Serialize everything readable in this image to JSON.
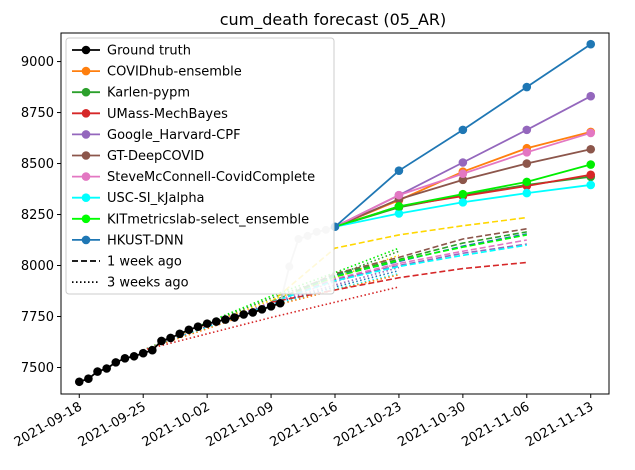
{
  "chart_data": {
    "type": "line",
    "title": "cum_death forecast (05_AR)",
    "xlabel": "",
    "ylabel": "",
    "x_range": [
      "2021-09-16",
      "2021-11-15"
    ],
    "y_range": [
      7370,
      9140
    ],
    "x_ticks": [
      "2021-09-18",
      "2021-09-25",
      "2021-10-02",
      "2021-10-09",
      "2021-10-16",
      "2021-10-23",
      "2021-10-30",
      "2021-11-06",
      "2021-11-13"
    ],
    "y_ticks": [
      7500,
      7750,
      8000,
      8250,
      8500,
      8750,
      9000
    ],
    "grid": false,
    "legend_position": "top-left",
    "ground_truth": {
      "name": "Ground truth",
      "color": "#000000",
      "x": [
        "2021-09-18",
        "2021-09-19",
        "2021-09-20",
        "2021-09-21",
        "2021-09-22",
        "2021-09-23",
        "2021-09-24",
        "2021-09-25",
        "2021-09-26",
        "2021-09-27",
        "2021-09-28",
        "2021-09-29",
        "2021-09-30",
        "2021-10-01",
        "2021-10-02",
        "2021-10-03",
        "2021-10-04",
        "2021-10-05",
        "2021-10-06",
        "2021-10-07",
        "2021-10-08",
        "2021-10-09",
        "2021-10-10"
      ],
      "y": [
        7430,
        7445,
        7480,
        7495,
        7525,
        7545,
        7555,
        7570,
        7585,
        7630,
        7645,
        7665,
        7685,
        7700,
        7715,
        7725,
        7735,
        7745,
        7760,
        7770,
        7785,
        7800,
        7815
      ]
    },
    "ground_truth_later": {
      "color": "#c8c8c8",
      "x": [
        "2021-10-10",
        "2021-10-11",
        "2021-10-12",
        "2021-10-13",
        "2021-10-14",
        "2021-10-15",
        "2021-10-16"
      ],
      "y": [
        7815,
        7995,
        8130,
        8145,
        8165,
        8175,
        8190
      ]
    },
    "forecast_x": [
      "2021-10-16",
      "2021-10-23",
      "2021-10-30",
      "2021-11-06",
      "2021-11-13"
    ],
    "series": [
      {
        "name": "COVIDhub-ensemble",
        "color": "#ff7f0e",
        "values": [
          8190,
          8320,
          8460,
          8575,
          8655
        ]
      },
      {
        "name": "Karlen-pypm",
        "color": "#2ca02c",
        "values": [
          8190,
          8285,
          8345,
          8395,
          8435
        ]
      },
      {
        "name": "UMass-MechBayes",
        "color": "#d62728",
        "values": [
          8190,
          8290,
          8340,
          8390,
          8445
        ]
      },
      {
        "name": "Google_Harvard-CPF",
        "color": "#9467bd",
        "values": [
          8190,
          8345,
          8505,
          8665,
          8830
        ]
      },
      {
        "name": "GT-DeepCOVID",
        "color": "#8c564b",
        "values": [
          8190,
          8325,
          8420,
          8500,
          8570
        ]
      },
      {
        "name": "SteveMcConnell-CovidComplete",
        "color": "#e377c2",
        "values": [
          8190,
          8345,
          8450,
          8555,
          8650
        ]
      },
      {
        "name": "USC-SI_kJalpha",
        "color": "#00ffff",
        "values": [
          8190,
          8255,
          8310,
          8355,
          8395
        ]
      },
      {
        "name": "KITmetricslab-select_ensemble",
        "color": "#00ee00",
        "values": [
          8190,
          8290,
          8350,
          8410,
          8495
        ]
      },
      {
        "name": "HKUST-DNN",
        "color": "#1f77b4",
        "values": [
          8190,
          8465,
          8665,
          8875,
          9085
        ]
      }
    ],
    "one_week_ago": {
      "label": "1 week ago",
      "x": [
        "2021-10-09",
        "2021-10-16",
        "2021-10-23",
        "2021-10-30",
        "2021-11-06"
      ],
      "series": [
        {
          "color": "#ffd700",
          "values": [
            7820,
            8085,
            8150,
            8195,
            8235
          ]
        },
        {
          "color": "#8c564b",
          "values": [
            7820,
            7960,
            8040,
            8130,
            8180
          ]
        },
        {
          "color": "#2ca02c",
          "values": [
            7820,
            7955,
            8030,
            8110,
            8165
          ]
        },
        {
          "color": "#1f77b4",
          "values": [
            7820,
            7950,
            8020,
            8095,
            8155
          ]
        },
        {
          "color": "#00ff00",
          "values": [
            7820,
            7945,
            8025,
            8090,
            8150
          ]
        },
        {
          "color": "#e377c2",
          "values": [
            7820,
            7935,
            8010,
            8070,
            8125
          ]
        },
        {
          "color": "#9467bd",
          "values": [
            7820,
            7930,
            8000,
            8060,
            8105
          ]
        },
        {
          "color": "#00ffff",
          "values": [
            7820,
            7925,
            7995,
            8050,
            8100
          ]
        },
        {
          "color": "#d62728",
          "values": [
            7820,
            7880,
            7940,
            7985,
            8015
          ]
        }
      ]
    },
    "three_weeks_ago": {
      "label": "3 weeks ago",
      "x": [
        "2021-09-25",
        "2021-10-02",
        "2021-10-09",
        "2021-10-16",
        "2021-10-23"
      ],
      "series": [
        {
          "color": "#00ee00",
          "values": [
            7585,
            7720,
            7850,
            7965,
            8085
          ]
        },
        {
          "color": "#2ca02c",
          "values": [
            7585,
            7715,
            7840,
            7950,
            8070
          ]
        },
        {
          "color": "#ffd700",
          "values": [
            7585,
            7710,
            7830,
            7940,
            8050
          ]
        },
        {
          "color": "#e377c2",
          "values": [
            7585,
            7705,
            7820,
            7920,
            8010
          ]
        },
        {
          "color": "#9467bd",
          "values": [
            7585,
            7700,
            7815,
            7905,
            7990
          ]
        },
        {
          "color": "#1f77b4",
          "values": [
            7585,
            7700,
            7810,
            7895,
            7975
          ]
        },
        {
          "color": "#00ffff",
          "values": [
            7585,
            7695,
            7805,
            7885,
            7960
          ]
        },
        {
          "color": "#ff7f0e",
          "values": [
            7585,
            7690,
            7800,
            7880,
            7955
          ]
        },
        {
          "color": "#d62728",
          "values": [
            7585,
            7665,
            7745,
            7820,
            7895
          ]
        }
      ]
    },
    "legend": [
      {
        "label": "Ground truth",
        "color": "#000000",
        "style": "solid-marker"
      },
      {
        "label": "COVIDhub-ensemble",
        "color": "#ff7f0e",
        "style": "solid-marker"
      },
      {
        "label": "Karlen-pypm",
        "color": "#2ca02c",
        "style": "solid-marker"
      },
      {
        "label": "UMass-MechBayes",
        "color": "#d62728",
        "style": "solid-marker"
      },
      {
        "label": "Google_Harvard-CPF",
        "color": "#9467bd",
        "style": "solid-marker"
      },
      {
        "label": "GT-DeepCOVID",
        "color": "#8c564b",
        "style": "solid-marker"
      },
      {
        "label": "SteveMcConnell-CovidComplete",
        "color": "#e377c2",
        "style": "solid-marker"
      },
      {
        "label": "USC-SI_kJalpha",
        "color": "#00ffff",
        "style": "solid-marker"
      },
      {
        "label": "KITmetricslab-select_ensemble",
        "color": "#00ff00",
        "style": "solid-marker"
      },
      {
        "label": "HKUST-DNN",
        "color": "#1f77b4",
        "style": "solid-marker"
      },
      {
        "label": "1 week ago",
        "color": "#000000",
        "style": "dashed"
      },
      {
        "label": "3 weeks ago",
        "color": "#000000",
        "style": "dotted"
      }
    ]
  }
}
